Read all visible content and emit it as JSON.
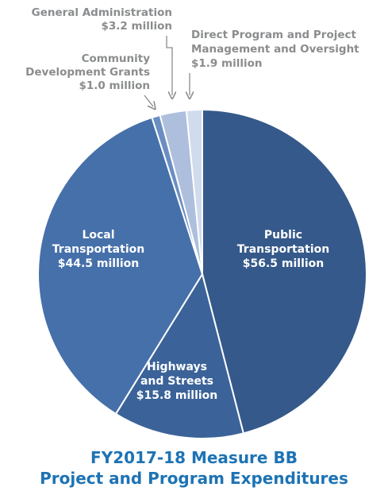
{
  "chart_data": {
    "type": "pie",
    "title": [
      "FY2017-18 Measure BB",
      "Project and Program Expenditures"
    ],
    "unit": "$ million",
    "slices": [
      {
        "label": [
          "Public",
          "Transportation"
        ],
        "value": 56.5,
        "value_label": "$56.5 million",
        "color": "#35598a",
        "label_position": "inside"
      },
      {
        "label": [
          "Highways",
          "and Streets"
        ],
        "value": 15.8,
        "value_label": "$15.8 million",
        "color": "#3b6399",
        "label_position": "inside"
      },
      {
        "label": [
          "Local",
          "Transportation"
        ],
        "value": 44.5,
        "value_label": "$44.5 million",
        "color": "#4670aa",
        "label_position": "inside"
      },
      {
        "label": [
          "Community",
          "Development Grants"
        ],
        "value": 1.0,
        "value_label": "$1.0 million",
        "color": "#6a8ec2",
        "label_position": "callout"
      },
      {
        "label": [
          "General Administration"
        ],
        "value": 3.2,
        "value_label": "$3.2 million",
        "color": "#adbfdc",
        "label_position": "callout"
      },
      {
        "label": [
          "Direct Program and Project",
          "Management and Oversight"
        ],
        "value": 1.9,
        "value_label": "$1.9 million",
        "color": "#d0dbec",
        "label_position": "callout"
      }
    ],
    "legend": "none",
    "start": "top, clockwise"
  }
}
